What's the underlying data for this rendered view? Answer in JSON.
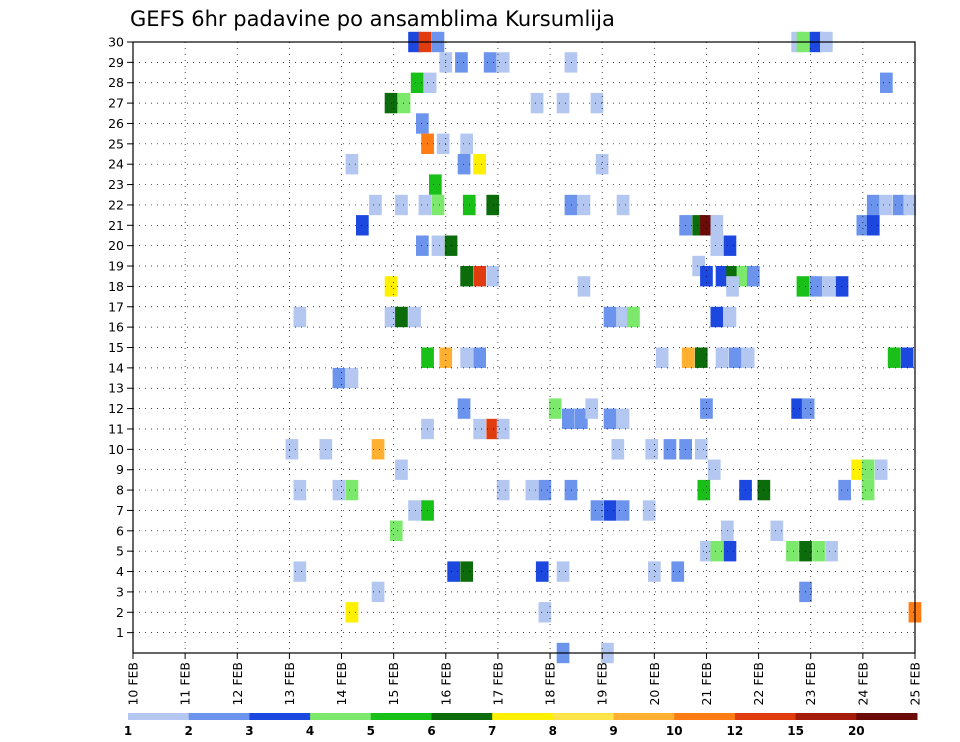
{
  "chart_data": {
    "type": "heatmap",
    "title": "GEFS 6hr padavine po ansamblima Kursumlija",
    "xlabel": "",
    "ylabel": "",
    "x_ticks": [
      "10 FEB",
      "11 FEB",
      "12 FEB",
      "13 FEB",
      "14 FEB",
      "15 FEB",
      "16 FEB",
      "17 FEB",
      "18 FEB",
      "19 FEB",
      "20 FEB",
      "21 FEB",
      "22 FEB",
      "23 FEB",
      "24 FEB",
      "25 FEB"
    ],
    "xlim": [
      0,
      15
    ],
    "y_ticks": [
      1,
      2,
      3,
      4,
      5,
      6,
      7,
      8,
      9,
      10,
      11,
      12,
      13,
      14,
      15,
      16,
      17,
      18,
      19,
      20,
      21,
      22,
      23,
      24,
      25,
      26,
      27,
      28,
      29,
      30
    ],
    "ylim": [
      0,
      30
    ],
    "grid": true,
    "grid_style": "dotted",
    "legend": {
      "placement": "bottom",
      "labels": [
        "1",
        "2",
        "3",
        "4",
        "5",
        "6",
        "7",
        "8",
        "9",
        "10",
        "12",
        "15",
        "20"
      ],
      "colors": [
        "#b4c7f0",
        "#6c94ec",
        "#1c48e0",
        "#7ce86c",
        "#18c018",
        "#0c6c0c",
        "#fff000",
        "#ffe44c",
        "#ffb030",
        "#ff7c14",
        "#e03c10",
        "#a41c0c",
        "#6c0c08"
      ]
    },
    "cells": [
      {
        "x": 5.4,
        "y": 30,
        "v": 3
      },
      {
        "x": 5.6,
        "y": 30,
        "v": 12
      },
      {
        "x": 5.85,
        "y": 30,
        "v": 2
      },
      {
        "x": 12.75,
        "y": 30,
        "v": 1
      },
      {
        "x": 12.85,
        "y": 30,
        "v": 4
      },
      {
        "x": 13.1,
        "y": 30,
        "v": 3
      },
      {
        "x": 13.3,
        "y": 30,
        "v": 1
      },
      {
        "x": 6.0,
        "y": 29,
        "v": 1
      },
      {
        "x": 6.3,
        "y": 29,
        "v": 2
      },
      {
        "x": 6.85,
        "y": 29,
        "v": 2
      },
      {
        "x": 7.1,
        "y": 29,
        "v": 1
      },
      {
        "x": 8.4,
        "y": 29,
        "v": 1
      },
      {
        "x": 5.45,
        "y": 28,
        "v": 5
      },
      {
        "x": 5.7,
        "y": 28,
        "v": 1
      },
      {
        "x": 14.45,
        "y": 28,
        "v": 2
      },
      {
        "x": 4.95,
        "y": 27,
        "v": 6
      },
      {
        "x": 5.2,
        "y": 27,
        "v": 4
      },
      {
        "x": 7.75,
        "y": 27,
        "v": 1
      },
      {
        "x": 8.25,
        "y": 27,
        "v": 1
      },
      {
        "x": 8.9,
        "y": 27,
        "v": 1
      },
      {
        "x": 5.55,
        "y": 26,
        "v": 2
      },
      {
        "x": 5.65,
        "y": 25,
        "v": 10
      },
      {
        "x": 5.95,
        "y": 25,
        "v": 1
      },
      {
        "x": 6.4,
        "y": 25,
        "v": 1
      },
      {
        "x": 4.2,
        "y": 24,
        "v": 1
      },
      {
        "x": 6.35,
        "y": 24,
        "v": 2
      },
      {
        "x": 6.65,
        "y": 24,
        "v": 7
      },
      {
        "x": 9.0,
        "y": 24,
        "v": 1
      },
      {
        "x": 5.8,
        "y": 23,
        "v": 5
      },
      {
        "x": 4.65,
        "y": 22,
        "v": 1
      },
      {
        "x": 5.15,
        "y": 22,
        "v": 1
      },
      {
        "x": 5.6,
        "y": 22,
        "v": 1
      },
      {
        "x": 5.85,
        "y": 22,
        "v": 4
      },
      {
        "x": 6.45,
        "y": 22,
        "v": 5
      },
      {
        "x": 6.9,
        "y": 22,
        "v": 6
      },
      {
        "x": 8.4,
        "y": 22,
        "v": 2
      },
      {
        "x": 8.65,
        "y": 22,
        "v": 1
      },
      {
        "x": 9.4,
        "y": 22,
        "v": 1
      },
      {
        "x": 14.2,
        "y": 22,
        "v": 2
      },
      {
        "x": 14.45,
        "y": 22,
        "v": 1
      },
      {
        "x": 14.7,
        "y": 22,
        "v": 2
      },
      {
        "x": 14.9,
        "y": 22,
        "v": 1
      },
      {
        "x": 4.4,
        "y": 21,
        "v": 3
      },
      {
        "x": 10.6,
        "y": 21,
        "v": 2
      },
      {
        "x": 10.85,
        "y": 21,
        "v": 6
      },
      {
        "x": 11.0,
        "y": 21,
        "v": 20
      },
      {
        "x": 11.2,
        "y": 21,
        "v": 1
      },
      {
        "x": 14.0,
        "y": 21,
        "v": 2
      },
      {
        "x": 14.2,
        "y": 21,
        "v": 3
      },
      {
        "x": 5.55,
        "y": 20,
        "v": 2
      },
      {
        "x": 5.85,
        "y": 20,
        "v": 1
      },
      {
        "x": 6.1,
        "y": 20,
        "v": 6
      },
      {
        "x": 11.2,
        "y": 20,
        "v": 1
      },
      {
        "x": 11.45,
        "y": 20,
        "v": 3
      },
      {
        "x": 6.4,
        "y": 18.5,
        "v": 6
      },
      {
        "x": 6.65,
        "y": 18.5,
        "v": 12
      },
      {
        "x": 6.9,
        "y": 18.5,
        "v": 1
      },
      {
        "x": 10.85,
        "y": 19,
        "v": 1
      },
      {
        "x": 11.0,
        "y": 18.5,
        "v": 3
      },
      {
        "x": 11.3,
        "y": 18.5,
        "v": 3
      },
      {
        "x": 11.5,
        "y": 18.5,
        "v": 6
      },
      {
        "x": 11.7,
        "y": 18.5,
        "v": 4
      },
      {
        "x": 11.9,
        "y": 18.5,
        "v": 2
      },
      {
        "x": 4.95,
        "y": 18,
        "v": 7
      },
      {
        "x": 8.65,
        "y": 18,
        "v": 1
      },
      {
        "x": 11.5,
        "y": 18,
        "v": 1
      },
      {
        "x": 12.85,
        "y": 18,
        "v": 5
      },
      {
        "x": 13.1,
        "y": 18,
        "v": 2
      },
      {
        "x": 13.35,
        "y": 18,
        "v": 1
      },
      {
        "x": 13.6,
        "y": 18,
        "v": 3
      },
      {
        "x": 3.2,
        "y": 16.5,
        "v": 1
      },
      {
        "x": 4.95,
        "y": 16.5,
        "v": 1
      },
      {
        "x": 5.15,
        "y": 16.5,
        "v": 6
      },
      {
        "x": 5.4,
        "y": 16.5,
        "v": 1
      },
      {
        "x": 9.15,
        "y": 16.5,
        "v": 2
      },
      {
        "x": 9.4,
        "y": 16.5,
        "v": 1
      },
      {
        "x": 9.6,
        "y": 16.5,
        "v": 4
      },
      {
        "x": 11.2,
        "y": 16.5,
        "v": 3
      },
      {
        "x": 11.45,
        "y": 16.5,
        "v": 1
      },
      {
        "x": 5.65,
        "y": 14.5,
        "v": 5
      },
      {
        "x": 6.0,
        "y": 14.5,
        "v": 9
      },
      {
        "x": 6.4,
        "y": 14.5,
        "v": 1
      },
      {
        "x": 6.65,
        "y": 14.5,
        "v": 2
      },
      {
        "x": 10.15,
        "y": 14.5,
        "v": 1
      },
      {
        "x": 10.65,
        "y": 14.5,
        "v": 9
      },
      {
        "x": 10.9,
        "y": 14.5,
        "v": 6
      },
      {
        "x": 11.3,
        "y": 14.5,
        "v": 1
      },
      {
        "x": 11.55,
        "y": 14.5,
        "v": 2
      },
      {
        "x": 11.8,
        "y": 14.5,
        "v": 1
      },
      {
        "x": 14.6,
        "y": 14.5,
        "v": 5
      },
      {
        "x": 14.85,
        "y": 14.5,
        "v": 3
      },
      {
        "x": 3.95,
        "y": 13.5,
        "v": 2
      },
      {
        "x": 4.2,
        "y": 13.5,
        "v": 1
      },
      {
        "x": 6.35,
        "y": 12,
        "v": 2
      },
      {
        "x": 8.1,
        "y": 12,
        "v": 4
      },
      {
        "x": 8.35,
        "y": 11.5,
        "v": 2
      },
      {
        "x": 8.6,
        "y": 11.5,
        "v": 2
      },
      {
        "x": 8.8,
        "y": 12,
        "v": 1
      },
      {
        "x": 9.15,
        "y": 11.5,
        "v": 2
      },
      {
        "x": 9.4,
        "y": 11.5,
        "v": 1
      },
      {
        "x": 11.0,
        "y": 12,
        "v": 2
      },
      {
        "x": 12.75,
        "y": 12,
        "v": 3
      },
      {
        "x": 12.95,
        "y": 12,
        "v": 2
      },
      {
        "x": 5.65,
        "y": 11,
        "v": 1
      },
      {
        "x": 6.65,
        "y": 11,
        "v": 1
      },
      {
        "x": 6.9,
        "y": 11,
        "v": 12
      },
      {
        "x": 7.1,
        "y": 11,
        "v": 1
      },
      {
        "x": 3.05,
        "y": 10,
        "v": 1
      },
      {
        "x": 3.7,
        "y": 10,
        "v": 1
      },
      {
        "x": 4.7,
        "y": 10,
        "v": 9
      },
      {
        "x": 9.3,
        "y": 10,
        "v": 1
      },
      {
        "x": 9.95,
        "y": 10,
        "v": 1
      },
      {
        "x": 10.3,
        "y": 10,
        "v": 2
      },
      {
        "x": 10.6,
        "y": 10,
        "v": 2
      },
      {
        "x": 10.9,
        "y": 10,
        "v": 1
      },
      {
        "x": 5.15,
        "y": 9,
        "v": 1
      },
      {
        "x": 11.15,
        "y": 9,
        "v": 1
      },
      {
        "x": 13.9,
        "y": 9,
        "v": 7
      },
      {
        "x": 14.1,
        "y": 9,
        "v": 4
      },
      {
        "x": 14.35,
        "y": 9,
        "v": 1
      },
      {
        "x": 3.2,
        "y": 8,
        "v": 1
      },
      {
        "x": 3.95,
        "y": 8,
        "v": 1
      },
      {
        "x": 4.2,
        "y": 8,
        "v": 4
      },
      {
        "x": 7.1,
        "y": 8,
        "v": 1
      },
      {
        "x": 7.65,
        "y": 8,
        "v": 1
      },
      {
        "x": 7.9,
        "y": 8,
        "v": 2
      },
      {
        "x": 8.4,
        "y": 8,
        "v": 2
      },
      {
        "x": 10.95,
        "y": 8,
        "v": 5
      },
      {
        "x": 11.75,
        "y": 8,
        "v": 3
      },
      {
        "x": 12.1,
        "y": 8,
        "v": 6
      },
      {
        "x": 13.65,
        "y": 8,
        "v": 2
      },
      {
        "x": 14.1,
        "y": 8,
        "v": 4
      },
      {
        "x": 5.4,
        "y": 7,
        "v": 1
      },
      {
        "x": 5.65,
        "y": 7,
        "v": 5
      },
      {
        "x": 8.9,
        "y": 7,
        "v": 2
      },
      {
        "x": 9.15,
        "y": 7,
        "v": 3
      },
      {
        "x": 9.4,
        "y": 7,
        "v": 2
      },
      {
        "x": 9.9,
        "y": 7,
        "v": 1
      },
      {
        "x": 5.05,
        "y": 6,
        "v": 4
      },
      {
        "x": 11.4,
        "y": 6,
        "v": 1
      },
      {
        "x": 12.35,
        "y": 6,
        "v": 1
      },
      {
        "x": 11.0,
        "y": 5,
        "v": 1
      },
      {
        "x": 11.2,
        "y": 5,
        "v": 4
      },
      {
        "x": 11.45,
        "y": 5,
        "v": 3
      },
      {
        "x": 12.65,
        "y": 5,
        "v": 4
      },
      {
        "x": 12.9,
        "y": 5,
        "v": 6
      },
      {
        "x": 13.15,
        "y": 5,
        "v": 4
      },
      {
        "x": 13.4,
        "y": 5,
        "v": 1
      },
      {
        "x": 3.2,
        "y": 4,
        "v": 1
      },
      {
        "x": 6.15,
        "y": 4,
        "v": 3
      },
      {
        "x": 6.4,
        "y": 4,
        "v": 6
      },
      {
        "x": 7.85,
        "y": 4,
        "v": 3
      },
      {
        "x": 8.25,
        "y": 4,
        "v": 1
      },
      {
        "x": 10.0,
        "y": 4,
        "v": 1
      },
      {
        "x": 10.45,
        "y": 4,
        "v": 2
      },
      {
        "x": 4.7,
        "y": 3,
        "v": 1
      },
      {
        "x": 12.9,
        "y": 3,
        "v": 2
      },
      {
        "x": 4.2,
        "y": 2,
        "v": 7
      },
      {
        "x": 7.9,
        "y": 2,
        "v": 1
      },
      {
        "x": 15.0,
        "y": 2,
        "v": 10
      },
      {
        "x": 8.25,
        "y": 0,
        "v": 2
      },
      {
        "x": 9.1,
        "y": 0,
        "v": 1
      }
    ]
  }
}
